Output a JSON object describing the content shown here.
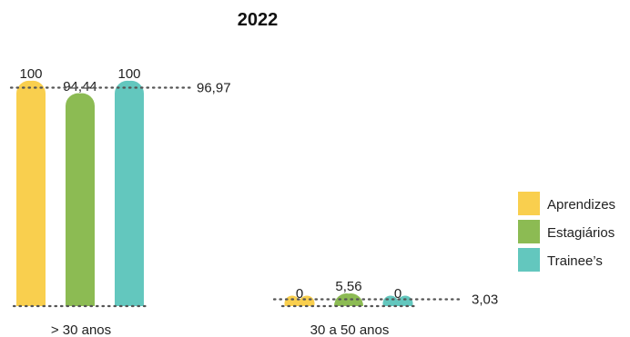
{
  "chart_data": {
    "type": "bar",
    "title": "2022",
    "categories": [
      "> 30 anos",
      "30 a 50 anos"
    ],
    "series": [
      {
        "name": "Aprendizes",
        "values": [
          100,
          0
        ],
        "color": "#F9CF4E"
      },
      {
        "name": "Estagiários",
        "values": [
          94.44,
          5.56
        ],
        "color": "#8CBB53"
      },
      {
        "name": "Trainee’s",
        "values": [
          100,
          0
        ],
        "color": "#63C7BE"
      }
    ],
    "value_labels": [
      [
        "100",
        "94,44",
        "100"
      ],
      [
        "0",
        "5,56",
        "0"
      ]
    ],
    "averages": [
      {
        "value": 96.97,
        "label": "96,97"
      },
      {
        "value": 3.03,
        "label": "3,03"
      }
    ],
    "ylim": [
      0,
      100
    ],
    "grid": false,
    "legend": "right"
  }
}
